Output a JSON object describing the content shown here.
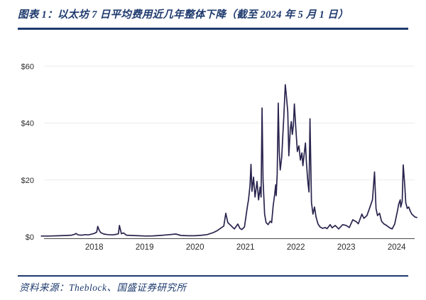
{
  "header": {
    "title": "图表 1：以太坊 7 日平均费用近几年整体下降（截至 2024 年 5 月 1 日）"
  },
  "footer": {
    "source": "资料来源：Theblock、国盛证券研究所"
  },
  "colors": {
    "accent_navy": "#1e3a6e",
    "line": "#29244d",
    "grid": "#ececec",
    "axis": "#4a4a4a",
    "tick_text": "#2b2b2b",
    "background": "#ffffff"
  },
  "chart_data": {
    "type": "line",
    "title": "图表 1：以太坊 7 日平均费用近几年整体下降（截至 2024 年 5 月 1 日）",
    "xlabel": "",
    "ylabel": "",
    "x_unit": "year",
    "y_unit": "USD",
    "grid": "horizontal",
    "legend": "none",
    "xlim": [
      2016.95,
      2024.45
    ],
    "ylim": [
      0,
      60
    ],
    "x_ticks": [
      2018,
      2019,
      2020,
      2021,
      2022,
      2023,
      2024
    ],
    "y_ticks": [
      {
        "value": 0,
        "label": "$0"
      },
      {
        "value": 20,
        "label": "$20"
      },
      {
        "value": 40,
        "label": "$40"
      },
      {
        "value": 60,
        "label": "$60"
      }
    ],
    "series": [
      {
        "name": "以太坊7日平均费用（美元）",
        "points": [
          [
            2016.95,
            0.3
          ],
          [
            2017.1,
            0.3
          ],
          [
            2017.3,
            0.4
          ],
          [
            2017.45,
            0.5
          ],
          [
            2017.55,
            0.6
          ],
          [
            2017.61,
            0.9
          ],
          [
            2017.64,
            1.2
          ],
          [
            2017.68,
            0.7
          ],
          [
            2017.76,
            0.6
          ],
          [
            2017.82,
            0.8
          ],
          [
            2017.88,
            0.7
          ],
          [
            2017.93,
            0.9
          ],
          [
            2018.0,
            1.2
          ],
          [
            2018.05,
            1.7
          ],
          [
            2018.07,
            3.7
          ],
          [
            2018.1,
            2.3
          ],
          [
            2018.13,
            1.5
          ],
          [
            2018.19,
            1.0
          ],
          [
            2018.27,
            0.8
          ],
          [
            2018.36,
            0.7
          ],
          [
            2018.44,
            0.9
          ],
          [
            2018.48,
            1.1
          ],
          [
            2018.5,
            4.0
          ],
          [
            2018.54,
            1.1
          ],
          [
            2018.58,
            1.4
          ],
          [
            2018.64,
            0.6
          ],
          [
            2018.74,
            0.5
          ],
          [
            2018.88,
            0.4
          ],
          [
            2019.02,
            0.3
          ],
          [
            2019.16,
            0.35
          ],
          [
            2019.3,
            0.5
          ],
          [
            2019.44,
            0.7
          ],
          [
            2019.62,
            1.0
          ],
          [
            2019.72,
            0.5
          ],
          [
            2019.86,
            0.4
          ],
          [
            2020.0,
            0.4
          ],
          [
            2020.14,
            0.6
          ],
          [
            2020.24,
            0.8
          ],
          [
            2020.36,
            1.5
          ],
          [
            2020.44,
            2.2
          ],
          [
            2020.52,
            3.2
          ],
          [
            2020.57,
            3.8
          ],
          [
            2020.61,
            8.3
          ],
          [
            2020.65,
            5.0
          ],
          [
            2020.71,
            4.0
          ],
          [
            2020.78,
            2.8
          ],
          [
            2020.85,
            4.5
          ],
          [
            2020.89,
            3.0
          ],
          [
            2020.93,
            2.6
          ],
          [
            2020.98,
            3.5
          ],
          [
            2021.04,
            10.8
          ],
          [
            2021.06,
            13.0
          ],
          [
            2021.09,
            18.0
          ],
          [
            2021.11,
            25.5
          ],
          [
            2021.13,
            16.0
          ],
          [
            2021.16,
            21.0
          ],
          [
            2021.19,
            14.0
          ],
          [
            2021.23,
            19.5
          ],
          [
            2021.26,
            13.0
          ],
          [
            2021.29,
            17.5
          ],
          [
            2021.31,
            14.0
          ],
          [
            2021.33,
            45.3
          ],
          [
            2021.35,
            20.0
          ],
          [
            2021.38,
            8.0
          ],
          [
            2021.41,
            5.0
          ],
          [
            2021.45,
            4.3
          ],
          [
            2021.49,
            5.5
          ],
          [
            2021.52,
            5.0
          ],
          [
            2021.55,
            10.8
          ],
          [
            2021.58,
            15.0
          ],
          [
            2021.6,
            18.3
          ],
          [
            2021.61,
            14.5
          ],
          [
            2021.63,
            22.0
          ],
          [
            2021.65,
            47.0
          ],
          [
            2021.67,
            30.0
          ],
          [
            2021.69,
            23.5
          ],
          [
            2021.72,
            28.0
          ],
          [
            2021.74,
            35.0
          ],
          [
            2021.76,
            42.0
          ],
          [
            2021.79,
            53.5
          ],
          [
            2021.81,
            50.0
          ],
          [
            2021.84,
            44.0
          ],
          [
            2021.86,
            28.5
          ],
          [
            2021.89,
            38.0
          ],
          [
            2021.91,
            40.5
          ],
          [
            2021.93,
            36.0
          ],
          [
            2021.95,
            39.0
          ],
          [
            2021.97,
            46.7
          ],
          [
            2022.0,
            38.0
          ],
          [
            2022.03,
            30.0
          ],
          [
            2022.06,
            32.0
          ],
          [
            2022.09,
            27.0
          ],
          [
            2022.12,
            29.5
          ],
          [
            2022.14,
            25.0
          ],
          [
            2022.17,
            30.0
          ],
          [
            2022.19,
            33.0
          ],
          [
            2022.21,
            26.0
          ],
          [
            2022.24,
            19.0
          ],
          [
            2022.26,
            15.8
          ],
          [
            2022.28,
            41.5
          ],
          [
            2022.31,
            12.0
          ],
          [
            2022.34,
            8.0
          ],
          [
            2022.37,
            10.5
          ],
          [
            2022.4,
            7.0
          ],
          [
            2022.44,
            4.5
          ],
          [
            2022.48,
            3.5
          ],
          [
            2022.53,
            3.0
          ],
          [
            2022.58,
            3.3
          ],
          [
            2022.62,
            2.9
          ],
          [
            2022.68,
            4.3
          ],
          [
            2022.72,
            3.2
          ],
          [
            2022.78,
            4.0
          ],
          [
            2022.85,
            2.8
          ],
          [
            2022.93,
            4.3
          ],
          [
            2023.0,
            4.0
          ],
          [
            2023.06,
            3.3
          ],
          [
            2023.13,
            6.0
          ],
          [
            2023.2,
            5.3
          ],
          [
            2023.24,
            4.6
          ],
          [
            2023.31,
            8.0
          ],
          [
            2023.35,
            6.5
          ],
          [
            2023.41,
            7.5
          ],
          [
            2023.46,
            10.0
          ],
          [
            2023.52,
            13.0
          ],
          [
            2023.56,
            22.8
          ],
          [
            2023.59,
            10.0
          ],
          [
            2023.62,
            7.5
          ],
          [
            2023.66,
            8.3
          ],
          [
            2023.7,
            5.5
          ],
          [
            2023.75,
            4.5
          ],
          [
            2023.8,
            4.0
          ],
          [
            2023.86,
            3.2
          ],
          [
            2023.91,
            2.8
          ],
          [
            2023.96,
            4.5
          ],
          [
            2023.99,
            7.0
          ],
          [
            2024.02,
            9.5
          ],
          [
            2024.04,
            11.5
          ],
          [
            2024.07,
            13.0
          ],
          [
            2024.08,
            10.5
          ],
          [
            2024.11,
            12.5
          ],
          [
            2024.13,
            25.3
          ],
          [
            2024.16,
            18.0
          ],
          [
            2024.18,
            12.0
          ],
          [
            2024.21,
            10.0
          ],
          [
            2024.24,
            10.5
          ],
          [
            2024.27,
            9.0
          ],
          [
            2024.3,
            8.0
          ],
          [
            2024.33,
            7.5
          ],
          [
            2024.36,
            7.0
          ],
          [
            2024.4,
            6.8
          ]
        ]
      }
    ]
  }
}
